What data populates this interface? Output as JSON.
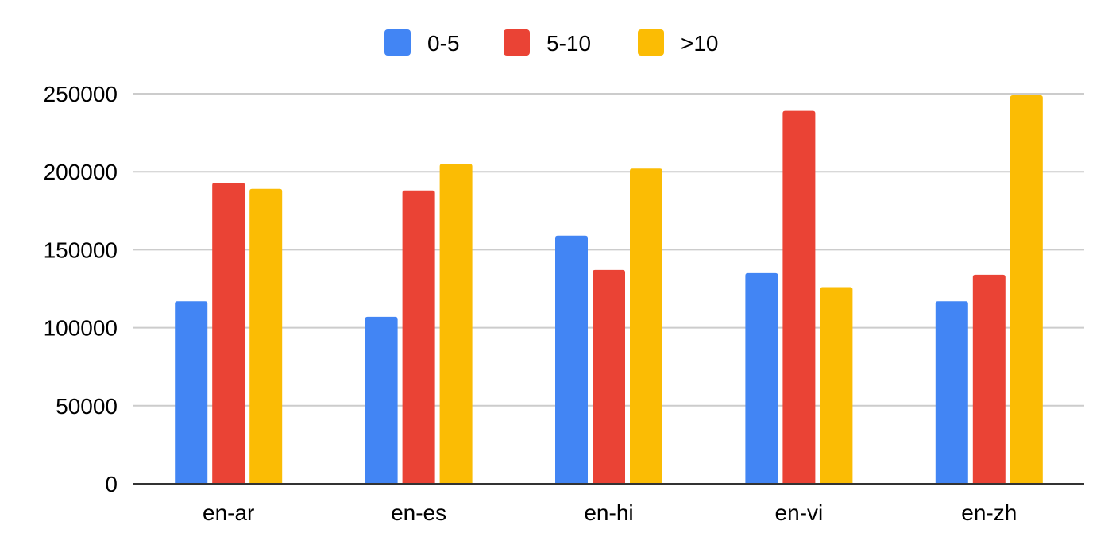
{
  "chart_data": {
    "type": "bar",
    "title": "",
    "xlabel": "",
    "ylabel": "",
    "categories": [
      "en-ar",
      "en-es",
      "en-hi",
      "en-vi",
      "en-zh"
    ],
    "series": [
      {
        "name": "0-5",
        "color": "#4285F4",
        "values": [
          117000,
          107000,
          159000,
          135000,
          117000
        ]
      },
      {
        "name": "5-10",
        "color": "#EA4335",
        "values": [
          193000,
          188000,
          137000,
          239000,
          134000
        ]
      },
      {
        "name": ">10",
        "color": "#FBBC04",
        "values": [
          189000,
          205000,
          202000,
          126000,
          249000
        ]
      }
    ],
    "ylim": [
      0,
      250000
    ],
    "yticks": [
      "0",
      "50000",
      "100000",
      "150000",
      "200000",
      "250000"
    ],
    "grid": true,
    "legend_position": "top-center"
  }
}
